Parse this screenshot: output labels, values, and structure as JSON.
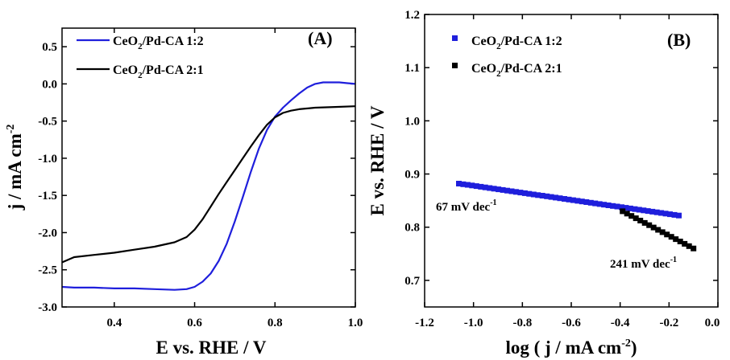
{
  "chart_data": [
    {
      "type": "line",
      "panel_label": "(A)",
      "xlabel": "E vs. RHE / V",
      "ylabel_main": "j / mA cm",
      "ylabel_sup": "-2",
      "xlim": [
        0.27,
        1.0
      ],
      "ylim": [
        -3.0,
        0.75
      ],
      "xticks": [
        0.4,
        0.6,
        0.8,
        1.0
      ],
      "xtick_labels": [
        "0.4",
        "0.6",
        "0.8",
        "1.0"
      ],
      "yticks": [
        0.5,
        0.0,
        -0.5,
        -1.0,
        -1.5,
        -2.0,
        -2.5,
        -3.0
      ],
      "ytick_labels": [
        "0.5",
        "0.0",
        "-0.5",
        "-1.0",
        "-1.5",
        "-2.0",
        "-2.5",
        "-3.0"
      ],
      "legend_position": "top-left",
      "series": [
        {
          "legend_main": "CeO",
          "legend_sub": "2",
          "legend_rest": "/Pd-CA 1:2",
          "color": "#1f1fdc",
          "points": [
            [
              0.27,
              -2.73
            ],
            [
              0.3,
              -2.74
            ],
            [
              0.35,
              -2.74
            ],
            [
              0.4,
              -2.75
            ],
            [
              0.45,
              -2.75
            ],
            [
              0.5,
              -2.76
            ],
            [
              0.55,
              -2.77
            ],
            [
              0.58,
              -2.76
            ],
            [
              0.6,
              -2.73
            ],
            [
              0.62,
              -2.66
            ],
            [
              0.64,
              -2.55
            ],
            [
              0.66,
              -2.38
            ],
            [
              0.68,
              -2.15
            ],
            [
              0.7,
              -1.85
            ],
            [
              0.72,
              -1.52
            ],
            [
              0.74,
              -1.18
            ],
            [
              0.76,
              -0.87
            ],
            [
              0.78,
              -0.62
            ],
            [
              0.8,
              -0.44
            ],
            [
              0.82,
              -0.32
            ],
            [
              0.84,
              -0.22
            ],
            [
              0.86,
              -0.13
            ],
            [
              0.88,
              -0.05
            ],
            [
              0.9,
              0.0
            ],
            [
              0.92,
              0.02
            ],
            [
              0.94,
              0.02
            ],
            [
              0.96,
              0.02
            ],
            [
              0.98,
              0.01
            ],
            [
              1.0,
              0.0
            ]
          ]
        },
        {
          "legend_main": "CeO",
          "legend_sub": "2",
          "legend_rest": "/Pd-CA 2:1",
          "color": "#000000",
          "points": [
            [
              0.27,
              -2.4
            ],
            [
              0.3,
              -2.33
            ],
            [
              0.35,
              -2.3
            ],
            [
              0.4,
              -2.27
            ],
            [
              0.45,
              -2.23
            ],
            [
              0.5,
              -2.19
            ],
            [
              0.55,
              -2.13
            ],
            [
              0.58,
              -2.06
            ],
            [
              0.6,
              -1.96
            ],
            [
              0.62,
              -1.82
            ],
            [
              0.64,
              -1.65
            ],
            [
              0.66,
              -1.48
            ],
            [
              0.68,
              -1.32
            ],
            [
              0.7,
              -1.16
            ],
            [
              0.72,
              -1.0
            ],
            [
              0.74,
              -0.84
            ],
            [
              0.76,
              -0.69
            ],
            [
              0.78,
              -0.55
            ],
            [
              0.8,
              -0.45
            ],
            [
              0.82,
              -0.39
            ],
            [
              0.84,
              -0.36
            ],
            [
              0.86,
              -0.34
            ],
            [
              0.9,
              -0.32
            ],
            [
              0.95,
              -0.31
            ],
            [
              1.0,
              -0.3
            ]
          ]
        }
      ]
    },
    {
      "type": "scatter",
      "panel_label": "(B)",
      "xlabel_main": "log ( j / mA cm",
      "xlabel_sup": "-2",
      "xlabel_end": ")",
      "ylabel": "E vs. RHE / V",
      "xlim": [
        -1.2,
        0.0
      ],
      "ylim": [
        0.65,
        1.2
      ],
      "xticks": [
        -1.2,
        -1.0,
        -0.8,
        -0.6,
        -0.4,
        -0.2,
        0.0
      ],
      "xtick_labels": [
        "-1.2",
        "-1.0",
        "-0.8",
        "-0.6",
        "-0.4",
        "-0.2",
        "0.0"
      ],
      "yticks": [
        0.7,
        0.8,
        0.9,
        1.0,
        1.1,
        1.2
      ],
      "ytick_labels": [
        "0.7",
        "0.8",
        "0.9",
        "1.0",
        "1.1",
        "1.2"
      ],
      "legend_position": "top-left",
      "series": [
        {
          "legend_main": "CeO",
          "legend_sub": "2",
          "legend_rest": "/Pd-CA 1:2",
          "color": "#1f1fdc",
          "x_range": [
            -1.06,
            -0.16
          ],
          "y_range": [
            0.882,
            0.822
          ],
          "slope_label": "67 mV dec",
          "slope_sup": "-1"
        },
        {
          "legend_main": "CeO",
          "legend_sub": "2",
          "legend_rest": "/Pd-CA 2:1",
          "color": "#000000",
          "x_range": [
            -0.39,
            -0.1
          ],
          "y_range": [
            0.83,
            0.76
          ],
          "slope_label": "241 mV dec",
          "slope_sup": "-1"
        }
      ]
    }
  ]
}
